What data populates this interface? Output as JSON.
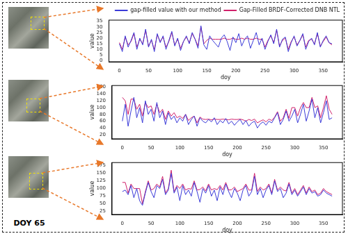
{
  "caption": "DOY 65",
  "chart_data": [
    {
      "type": "line",
      "x_label": "doy",
      "y_label": "value",
      "grid": false,
      "legend": "upper right",
      "xlim": [
        -18,
        383
      ],
      "xticks": [
        0,
        50,
        100,
        150,
        200,
        250,
        300,
        350
      ],
      "ylim": [
        -1,
        36
      ],
      "yticks": [
        0,
        5,
        10,
        15,
        20,
        25,
        30,
        35
      ],
      "x": [
        0,
        5,
        10,
        15,
        20,
        25,
        30,
        35,
        40,
        45,
        50,
        55,
        60,
        65,
        70,
        75,
        80,
        85,
        90,
        95,
        100,
        105,
        110,
        115,
        120,
        125,
        130,
        135,
        140,
        145,
        150,
        155,
        160,
        165,
        170,
        175,
        180,
        185,
        190,
        195,
        200,
        205,
        210,
        215,
        220,
        225,
        230,
        235,
        240,
        245,
        250,
        255,
        260,
        265,
        270,
        275,
        280,
        285,
        290,
        295,
        300,
        305,
        310,
        315,
        320,
        325,
        330,
        335,
        340,
        345,
        350,
        355,
        360,
        365
      ],
      "series": [
        {
          "name": "gap-filled value with our method",
          "color": "#3a3ad8",
          "values": [
            15,
            8,
            22,
            12,
            18,
            25,
            10,
            20,
            14,
            28,
            12,
            19,
            8,
            24,
            16,
            22,
            10,
            18,
            26,
            13,
            20,
            9,
            17,
            22,
            15,
            25,
            19,
            11,
            31,
            14,
            10,
            22,
            18,
            15,
            12,
            20,
            23,
            17,
            9,
            21,
            16,
            24,
            13,
            19,
            22,
            11,
            18,
            25,
            14,
            20,
            10,
            17,
            23,
            15,
            28,
            12,
            19,
            21,
            8,
            16,
            22,
            13,
            18,
            24,
            10,
            17,
            20,
            14,
            25,
            12,
            18,
            22,
            16,
            15
          ]
        },
        {
          "name": "Gap-Filled BRDF-Corrected DNB NTL",
          "color": "#d0206a",
          "values": [
            16,
            10,
            21,
            14,
            17,
            24,
            12,
            19,
            15,
            27,
            13,
            18,
            10,
            23,
            17,
            21,
            12,
            17,
            25,
            14,
            19,
            11,
            17,
            21,
            16,
            24,
            19,
            13,
            30,
            15,
            18,
            20,
            19,
            19,
            19,
            19,
            20,
            19,
            19,
            20,
            19,
            19,
            20,
            19,
            20,
            19,
            19,
            20,
            19,
            19,
            12,
            18,
            22,
            16,
            27,
            13,
            18,
            20,
            10,
            17,
            21,
            14,
            18,
            23,
            12,
            18,
            19,
            15,
            24,
            13,
            17,
            21,
            16,
            14
          ]
        }
      ]
    },
    {
      "type": "line",
      "x_label": "doy",
      "y_label": "value",
      "grid": false,
      "xlim": [
        -18,
        383
      ],
      "xticks": [
        0,
        50,
        100,
        150,
        200,
        250,
        300,
        350
      ],
      "ylim": [
        8,
        165
      ],
      "yticks": [
        20,
        40,
        60,
        80,
        100,
        120,
        140,
        160
      ],
      "x": [
        0,
        5,
        10,
        15,
        20,
        25,
        30,
        35,
        40,
        45,
        50,
        55,
        60,
        65,
        70,
        75,
        80,
        85,
        90,
        95,
        100,
        105,
        110,
        115,
        120,
        125,
        130,
        135,
        140,
        145,
        150,
        155,
        160,
        165,
        170,
        175,
        180,
        185,
        190,
        195,
        200,
        205,
        210,
        215,
        220,
        225,
        230,
        235,
        240,
        245,
        250,
        255,
        260,
        265,
        270,
        275,
        280,
        285,
        290,
        295,
        300,
        305,
        310,
        315,
        320,
        325,
        330,
        335,
        340,
        345,
        350,
        355,
        360,
        365
      ],
      "series": [
        {
          "color": "#3a3ad8",
          "values": [
            60,
            110,
            45,
            90,
            130,
            70,
            100,
            55,
            120,
            80,
            95,
            60,
            115,
            70,
            90,
            50,
            85,
            65,
            75,
            55,
            70,
            60,
            80,
            50,
            65,
            75,
            45,
            70,
            60,
            55,
            65,
            58,
            70,
            50,
            62,
            55,
            68,
            52,
            60,
            48,
            58,
            65,
            50,
            62,
            45,
            55,
            60,
            40,
            52,
            58,
            48,
            60,
            55,
            70,
            85,
            50,
            65,
            90,
            60,
            75,
            95,
            55,
            80,
            110,
            60,
            90,
            125,
            70,
            100,
            55,
            85,
            120,
            65,
            70
          ]
        },
        {
          "color": "#d0206a",
          "values": [
            130,
            120,
            80,
            125,
            125,
            95,
            110,
            75,
            115,
            100,
            105,
            80,
            110,
            85,
            95,
            65,
            90,
            75,
            85,
            70,
            75,
            68,
            80,
            62,
            70,
            75,
            55,
            72,
            66,
            65,
            66,
            64,
            66,
            65,
            65,
            66,
            65,
            64,
            66,
            65,
            65,
            66,
            64,
            60,
            65,
            62,
            66,
            55,
            60,
            64,
            58,
            66,
            62,
            72,
            88,
            60,
            70,
            95,
            68,
            100,
            100,
            75,
            100,
            115,
            100,
            100,
            130,
            100,
            105,
            70,
            100,
            135,
            95,
            80
          ]
        }
      ]
    },
    {
      "type": "line",
      "x_label": "doy",
      "y_label": "value",
      "grid": false,
      "xlim": [
        -18,
        383
      ],
      "xticks": [
        0,
        50,
        100,
        150,
        200,
        250,
        300,
        350
      ],
      "ylim": [
        15,
        185
      ],
      "yticks": [
        25,
        50,
        75,
        100,
        125,
        150,
        175
      ],
      "x": [
        0,
        5,
        10,
        15,
        20,
        25,
        30,
        35,
        40,
        45,
        50,
        55,
        60,
        65,
        70,
        75,
        80,
        85,
        90,
        95,
        100,
        105,
        110,
        115,
        120,
        125,
        130,
        135,
        140,
        145,
        150,
        155,
        160,
        165,
        170,
        175,
        180,
        185,
        190,
        195,
        200,
        205,
        210,
        215,
        220,
        225,
        230,
        235,
        240,
        245,
        250,
        255,
        260,
        265,
        270,
        275,
        280,
        285,
        290,
        295,
        300,
        305,
        310,
        315,
        320,
        325,
        330,
        335,
        340,
        345,
        350,
        355,
        360,
        365
      ],
      "series": [
        {
          "color": "#3a3ad8",
          "values": [
            90,
            95,
            80,
            110,
            70,
            100,
            60,
            45,
            85,
            120,
            90,
            70,
            110,
            100,
            130,
            80,
            95,
            150,
            85,
            105,
            60,
            110,
            80,
            95,
            75,
            120,
            90,
            55,
            100,
            85,
            110,
            75,
            95,
            60,
            105,
            80,
            115,
            90,
            70,
            100,
            85,
            60,
            95,
            110,
            75,
            90,
            140,
            80,
            100,
            70,
            95,
            110,
            80,
            125,
            90,
            100,
            70,
            85,
            115,
            80,
            95,
            75,
            90,
            105,
            80,
            100,
            85,
            90,
            75,
            80,
            95,
            85,
            80,
            75
          ]
        },
        {
          "color": "#d0206a",
          "values": [
            120,
            120,
            85,
            115,
            100,
            100,
            100,
            50,
            90,
            125,
            95,
            100,
            115,
            105,
            140,
            85,
            100,
            160,
            90,
            110,
            100,
            115,
            95,
            100,
            98,
            125,
            95,
            97,
            105,
            92,
            115,
            95,
            100,
            96,
            110,
            95,
            120,
            95,
            96,
            105,
            90,
            95,
            100,
            115,
            95,
            95,
            150,
            90,
            105,
            95,
            100,
            115,
            85,
            130,
            95,
            105,
            95,
            92,
            120,
            85,
            100,
            80,
            95,
            110,
            85,
            105,
            90,
            95,
            80,
            85,
            100,
            90,
            85,
            80
          ]
        }
      ]
    }
  ]
}
